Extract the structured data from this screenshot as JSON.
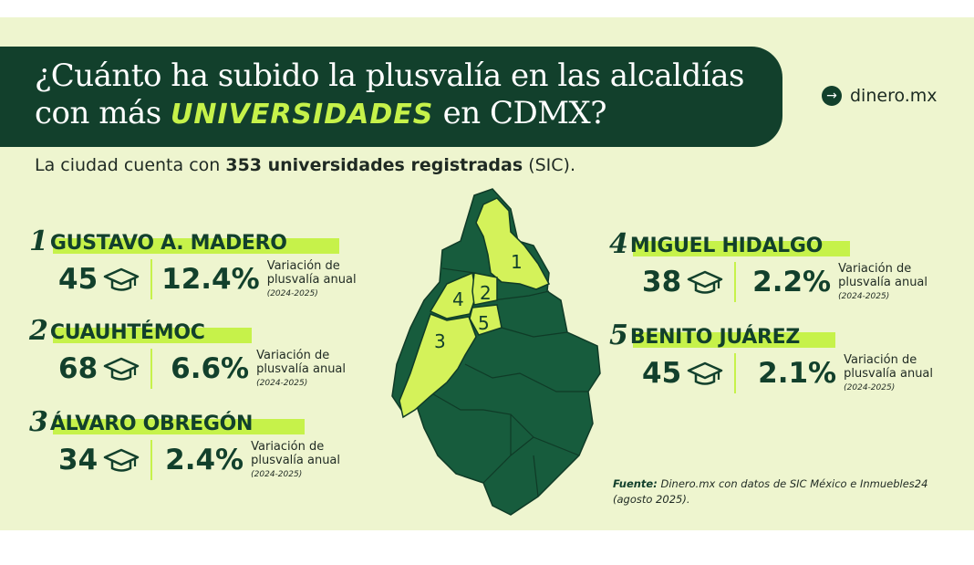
{
  "header": {
    "title_line1": "¿Cuánto ha subido la plusvalía en las alcaldías",
    "title_line2_pre": "con más ",
    "title_highlight": "UNIVERSIDADES",
    "title_line2_post": " en CDMX?",
    "brand_icon": "arrow-right-circle-icon",
    "brand_name": "dinero.mx"
  },
  "subtitle": {
    "pre": "La ciudad cuenta con ",
    "bold": "353 universidades registradas",
    "post": " (SIC)."
  },
  "districts": [
    {
      "rank": "1",
      "name": "GUSTAVO A. MADERO",
      "universities": "45",
      "growth": "12.4%",
      "label": "Variación de plusvalía anual",
      "period": "(2024-2025)"
    },
    {
      "rank": "2",
      "name": "CUAUHTÉMOC",
      "universities": "68",
      "growth": "6.6%",
      "label": "Variación de plusvalía anual",
      "period": "(2024-2025)"
    },
    {
      "rank": "3",
      "name": "ÁLVARO OBREGÓN",
      "universities": "34",
      "growth": "2.4%",
      "label": "Variación de plusvalía anual",
      "period": "(2024-2025)"
    },
    {
      "rank": "4",
      "name": "MIGUEL HIDALGO",
      "universities": "38",
      "growth": "2.2%",
      "label": "Variación de plusvalía anual",
      "period": "(2024-2025)"
    },
    {
      "rank": "5",
      "name": "BENITO JUÁREZ",
      "universities": "45",
      "growth": "2.1%",
      "label": "Variación de plusvalía anual",
      "period": "(2024-2025)"
    }
  ],
  "map": {
    "labels": [
      "1",
      "2",
      "3",
      "4",
      "5"
    ],
    "colors": {
      "base": "#175c3d",
      "highlight": "#d4f25a",
      "border": "#0f3b27",
      "text": "#12402c"
    }
  },
  "icons": {
    "graduation_cap": "graduation-cap-icon"
  },
  "source": {
    "label": "Fuente:",
    "text": " Dinero.mx con datos de SIC México e Inmuebles24 (agosto 2025)."
  },
  "colors": {
    "background": "#eef5cf",
    "banner": "#12402c",
    "accent": "#c6f24a",
    "text_dark": "#12402c"
  }
}
